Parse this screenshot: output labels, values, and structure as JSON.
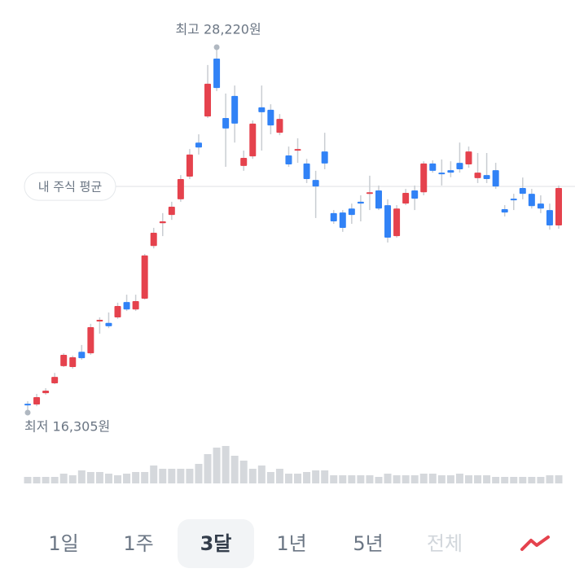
{
  "chart_data": {
    "type": "candlestick",
    "high_label": "최고 28,220원",
    "low_label": "최저 16,305원",
    "average_label": "내 주식 평균",
    "average": 23680,
    "up_color": "#e5424d",
    "down_color": "#3182f6",
    "volume_color": "#d5d8dc",
    "ylim": [
      16305,
      28220
    ],
    "open": [
      16595,
      16570,
      16940,
      17260,
      17820,
      17790,
      18290,
      18240,
      19280,
      19230,
      19410,
      19910,
      19670,
      20020,
      21740,
      22480,
      22750,
      23260,
      24000,
      25110,
      25960,
      27850,
      25910,
      26630,
      24350,
      24660,
      26260,
      26180,
      25430,
      24690,
      24850,
      24430,
      23890,
      24820,
      22810,
      22830,
      22960,
      23180,
      23440,
      23550,
      23070,
      22060,
      23120,
      23550,
      23490,
      24430,
      24130,
      24210,
      24450,
      24400,
      23950,
      24050,
      24210,
      22940,
      23280,
      23630,
      23440,
      23120,
      22910,
      22410
    ],
    "high": [
      16675,
      16915,
      17100,
      17600,
      18240,
      18160,
      18510,
      19200,
      19410,
      19570,
      19890,
      20150,
      20150,
      21480,
      22330,
      22810,
      23180,
      24050,
      24900,
      25380,
      27640,
      28220,
      26710,
      26970,
      24850,
      25830,
      26970,
      26360,
      26040,
      24980,
      25250,
      24580,
      24190,
      25430,
      22910,
      22910,
      23120,
      23390,
      24030,
      23710,
      23260,
      23070,
      23600,
      23710,
      24500,
      24530,
      24560,
      24500,
      25110,
      24980,
      24770,
      24770,
      24450,
      23070,
      23440,
      23970,
      23600,
      23390,
      23120,
      23710
    ],
    "low": [
      16305,
      16515,
      16890,
      17230,
      17790,
      17740,
      18030,
      18190,
      18880,
      19060,
      19360,
      19620,
      19620,
      19990,
      21660,
      22060,
      22590,
      23180,
      23920,
      24720,
      25910,
      26790,
      24320,
      25110,
      24190,
      24580,
      24850,
      25380,
      25350,
      24320,
      24450,
      23790,
      22650,
      24240,
      22460,
      22200,
      22460,
      22540,
      22910,
      22910,
      21850,
      22010,
      23070,
      22910,
      23390,
      24130,
      23710,
      23980,
      24130,
      24290,
      23790,
      23790,
      23600,
      22700,
      22910,
      23260,
      22960,
      22810,
      22270,
      22300
    ],
    "close": [
      16570,
      16810,
      17020,
      17470,
      18190,
      18110,
      18080,
      19090,
      19330,
      19120,
      19780,
      19670,
      19940,
      21430,
      22170,
      22540,
      23020,
      23920,
      24720,
      24950,
      27030,
      26890,
      25570,
      25730,
      24610,
      25730,
      26100,
      25670,
      25880,
      24400,
      24900,
      23920,
      23680,
      24430,
      22540,
      22330,
      22750,
      23120,
      23490,
      22960,
      22010,
      22960,
      23470,
      23280,
      24430,
      24190,
      24080,
      24130,
      24240,
      24820,
      24130,
      23920,
      23680,
      22830,
      23230,
      23440,
      23040,
      22960,
      22410,
      23630
    ],
    "volume": [
      8,
      8,
      8,
      8,
      12,
      10,
      16,
      14,
      14,
      12,
      10,
      12,
      14,
      14,
      22,
      18,
      18,
      18,
      18,
      24,
      36,
      44,
      46,
      34,
      28,
      18,
      22,
      14,
      18,
      12,
      12,
      14,
      16,
      16,
      10,
      10,
      10,
      10,
      10,
      8,
      12,
      10,
      10,
      10,
      12,
      12,
      10,
      10,
      12,
      10,
      10,
      10,
      8,
      8,
      8,
      8,
      8,
      8,
      10,
      10
    ]
  },
  "range_tabs": {
    "items": [
      "1일",
      "1주",
      "3달",
      "1년",
      "5년",
      "전체"
    ],
    "selected": 2,
    "disabled": 5
  }
}
